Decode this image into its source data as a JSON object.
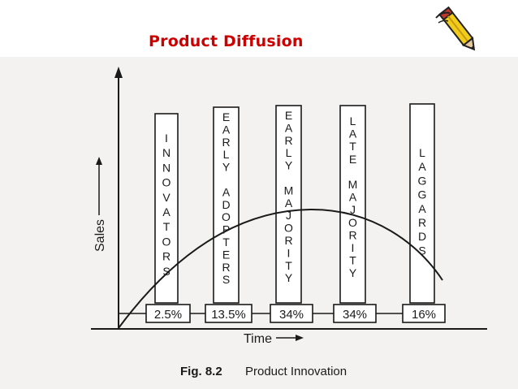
{
  "slide": {
    "title": "Product Diffusion"
  },
  "figure": {
    "caption_label": "Fig. 8.2",
    "caption_text": "Product Innovation",
    "y_axis_label": "Sales",
    "x_axis_label": "Time",
    "categories": [
      {
        "letters": [
          "I",
          "N",
          "N",
          "O",
          "V",
          "A",
          "T",
          "O",
          "R",
          "S"
        ],
        "percent": "2.5%"
      },
      {
        "letters": [
          "E",
          "A",
          "R",
          "L",
          "Y",
          "",
          "A",
          "D",
          "O",
          "P",
          "T",
          "E",
          "R",
          "S"
        ],
        "percent": "13.5%"
      },
      {
        "letters": [
          "E",
          "A",
          "R",
          "L",
          "Y",
          "",
          "M",
          "A",
          "J",
          "O",
          "R",
          "I",
          "T",
          "Y"
        ],
        "percent": "34%"
      },
      {
        "letters": [
          "L",
          "A",
          "T",
          "E",
          "",
          "M",
          "A",
          "J",
          "O",
          "R",
          "I",
          "T",
          "Y"
        ],
        "percent": "34%"
      },
      {
        "letters": [
          "L",
          "A",
          "G",
          "G",
          "A",
          "R",
          "D",
          "S"
        ],
        "percent": "16%"
      }
    ]
  },
  "colors": {
    "title": "#cc0000",
    "ink": "#1a1a1a",
    "scan_background": "#f3f2f0"
  },
  "icons": {
    "decoration": "pencil-icon"
  }
}
